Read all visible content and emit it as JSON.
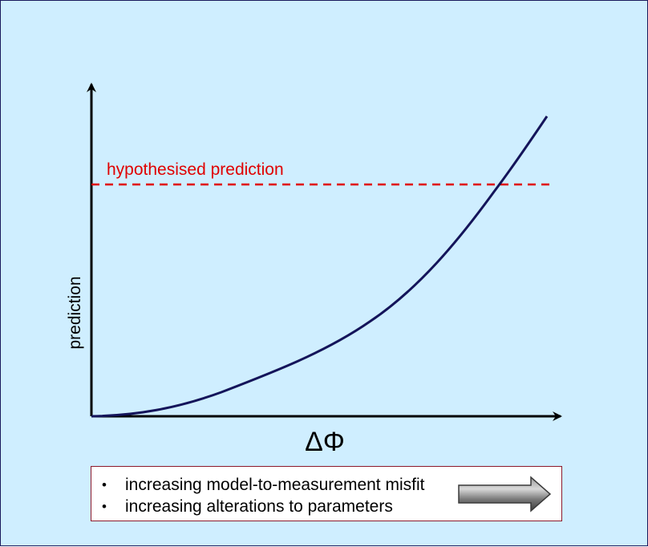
{
  "chart_data": {
    "type": "line",
    "xlabel": "ΔΦ",
    "ylabel": "prediction",
    "threshold": {
      "label": "hypothesised prediction",
      "style": "dashed",
      "color": "#e00000"
    },
    "curve_color": "#14145a"
  },
  "legend": {
    "items": [
      "increasing model-to-measurement misfit",
      "increasing alterations to parameters"
    ],
    "bullet": "•",
    "arrow_icon": "right-arrow-icon"
  }
}
